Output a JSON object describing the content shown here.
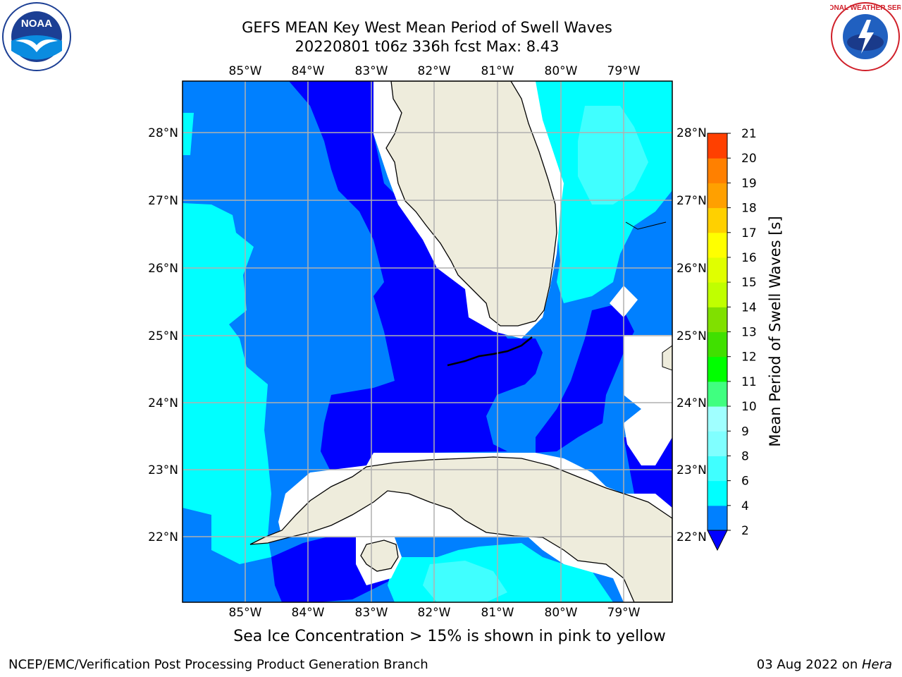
{
  "title": {
    "line1": "GEFS MEAN Key West Mean Period of Swell Waves",
    "line2": "20220801 t06z 336h fcst   Max: 8.43"
  },
  "logos": {
    "left": "noaa-logo",
    "left_text": "NOAA",
    "right": "national-weather-service-logo",
    "right_text": "NATIONAL WEATHER SERVICE"
  },
  "map": {
    "lon_labels": [
      "85°W",
      "84°W",
      "83°W",
      "82°W",
      "81°W",
      "80°W",
      "79°W"
    ],
    "lat_labels": [
      "28°N",
      "27°N",
      "26°N",
      "25°N",
      "24°N",
      "23°N",
      "22°N"
    ],
    "land_color": "#eeecdc",
    "grid_color": "#b0b0b0"
  },
  "colorbar": {
    "label": "Mean Period of Swell Waves [s]",
    "ticks": [
      "2",
      "4",
      "6",
      "8",
      "9",
      "10",
      "11",
      "12",
      "13",
      "14",
      "15",
      "16",
      "17",
      "18",
      "19",
      "20",
      "21"
    ],
    "colors": [
      "#0000ff",
      "#0080ff",
      "#00ffff",
      "#40ffff",
      "#80ffff",
      "#a0ffff",
      "#40ff80",
      "#00ff00",
      "#40e000",
      "#80e000",
      "#c0ff00",
      "#e0ff00",
      "#ffff00",
      "#ffd000",
      "#ffa000",
      "#ff8000",
      "#ff4000",
      "#ff0000"
    ]
  },
  "note": "Sea Ice Concentration > 15% is shown in pink to yellow",
  "footer": {
    "left": "NCEP/EMC/Verification Post Processing Product Generation Branch",
    "right_date": "03 Aug 2022 on ",
    "right_machine": "Hera"
  }
}
